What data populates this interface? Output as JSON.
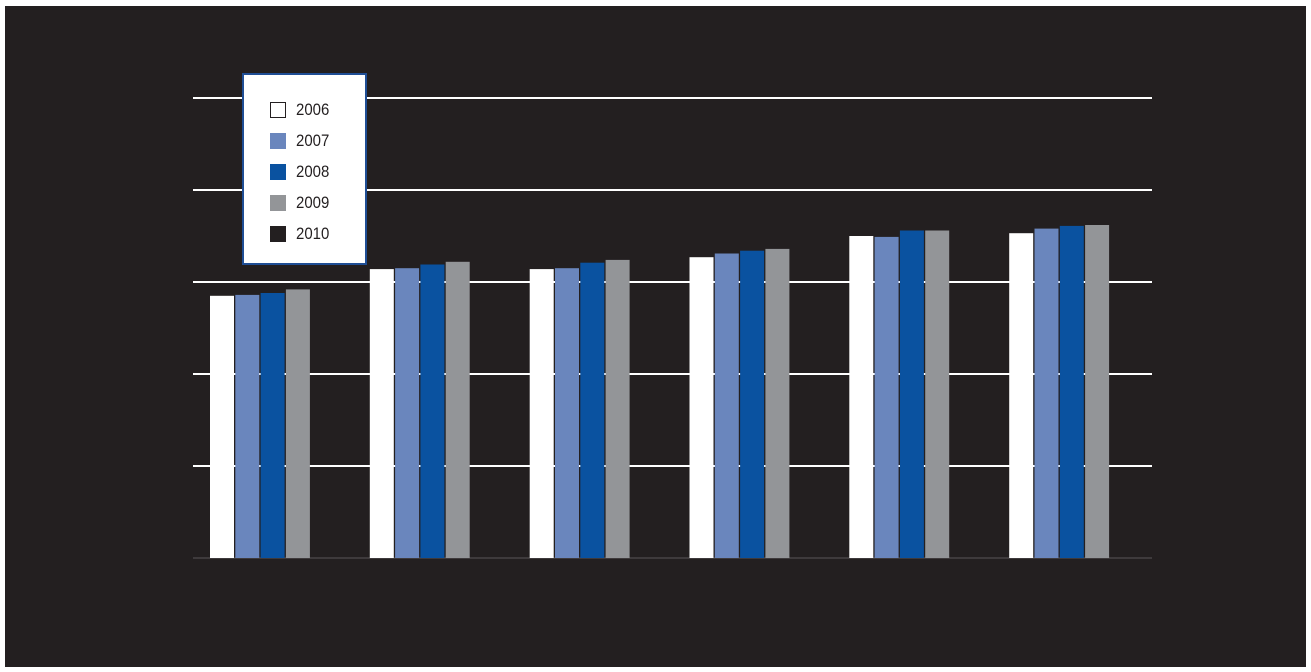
{
  "colors": {
    "background": "#231f20",
    "gridline": "#ffffff",
    "2006": "#ffffff",
    "2007": "#6a86bd",
    "2008": "#0a52a0",
    "2009": "#939598",
    "2010": "#231f20"
  },
  "chart_data": {
    "type": "bar",
    "title": "",
    "xlabel": "",
    "ylabel": "",
    "categories": [
      "",
      "",
      "",
      "",
      "",
      ""
    ],
    "ylim": [
      0,
      6
    ],
    "grid": true,
    "legend_position": "top-left",
    "series": [
      {
        "name": "2006",
        "values": [
          2.85,
          3.14,
          3.14,
          3.27,
          3.5,
          3.53
        ]
      },
      {
        "name": "2007",
        "values": [
          2.86,
          3.15,
          3.15,
          3.31,
          3.49,
          3.58
        ]
      },
      {
        "name": "2008",
        "values": [
          2.88,
          3.19,
          3.21,
          3.34,
          3.56,
          3.61
        ]
      },
      {
        "name": "2009",
        "values": [
          2.92,
          3.22,
          3.24,
          3.36,
          3.56,
          3.62
        ]
      },
      {
        "name": "2010",
        "values": [
          null,
          null,
          null,
          null,
          null,
          null
        ]
      }
    ]
  }
}
